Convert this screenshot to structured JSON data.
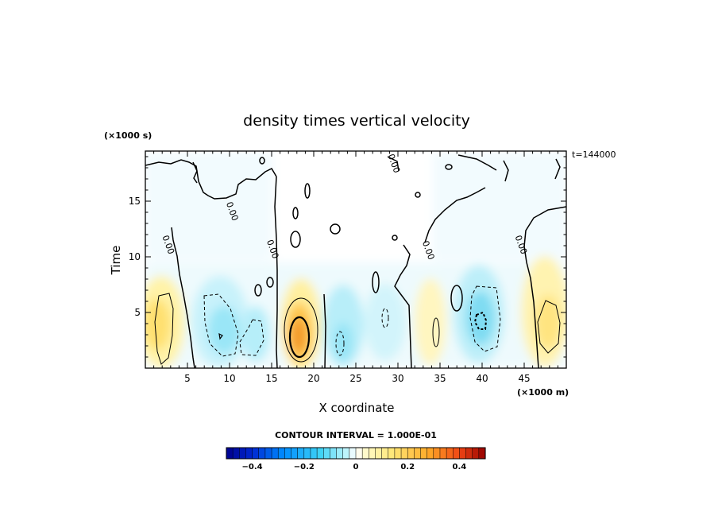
{
  "chart_data": {
    "type": "heatmap",
    "title": "density times vertical velocity",
    "xlabel": "X coordinate",
    "ylabel": "Time",
    "x_unit": "(×1000 m)",
    "y_unit": "(×1000 s)",
    "time_stamp": "t=144000",
    "xlim": [
      0,
      50
    ],
    "ylim": [
      0,
      19.5
    ],
    "x_ticks": [
      5,
      10,
      15,
      20,
      25,
      30,
      35,
      40,
      45
    ],
    "x_tick_labels": [
      "5",
      "10",
      "15",
      "20",
      "25",
      "30",
      "35",
      "40",
      "45"
    ],
    "y_ticks": [
      5,
      10,
      15
    ],
    "y_tick_labels": [
      "5",
      "10",
      "15"
    ],
    "contour_interval_label": "CONTOUR INTERVAL = 1.000E-01",
    "contour_labels": [
      {
        "text": "0.00",
        "x": 2.4,
        "y": 11.0
      },
      {
        "text": "0.00",
        "x": 10.0,
        "y": 14.0
      },
      {
        "text": "0.00",
        "x": 14.8,
        "y": 10.6
      },
      {
        "text": "0.00",
        "x": 29.2,
        "y": 18.3
      },
      {
        "text": "0.00",
        "x": 33.3,
        "y": 10.5
      },
      {
        "text": "0.00",
        "x": 44.3,
        "y": 11.0
      }
    ],
    "colorbar": {
      "vmin": -0.5,
      "vmax": 0.5,
      "tick_values": [
        -0.4,
        -0.2,
        0,
        0.2,
        0.4
      ],
      "tick_labels": [
        "−0.4",
        "−0.2",
        "0",
        "0.2",
        "0.4"
      ]
    },
    "field_features": [
      {
        "x": 2.0,
        "y": 3.5,
        "value": 0.15
      },
      {
        "x": 9.0,
        "y": 3.3,
        "value": -0.15
      },
      {
        "x": 13.0,
        "y": 3.5,
        "value": -0.1
      },
      {
        "x": 18.2,
        "y": 3.2,
        "value": 0.32
      },
      {
        "x": 23.0,
        "y": 2.8,
        "value": -0.12
      },
      {
        "x": 28.0,
        "y": 4.0,
        "value": -0.08
      },
      {
        "x": 33.8,
        "y": 3.2,
        "value": 0.08
      },
      {
        "x": 40.0,
        "y": 4.2,
        "value": -0.18
      },
      {
        "x": 46.5,
        "y": 4.0,
        "value": 0.12
      }
    ]
  }
}
